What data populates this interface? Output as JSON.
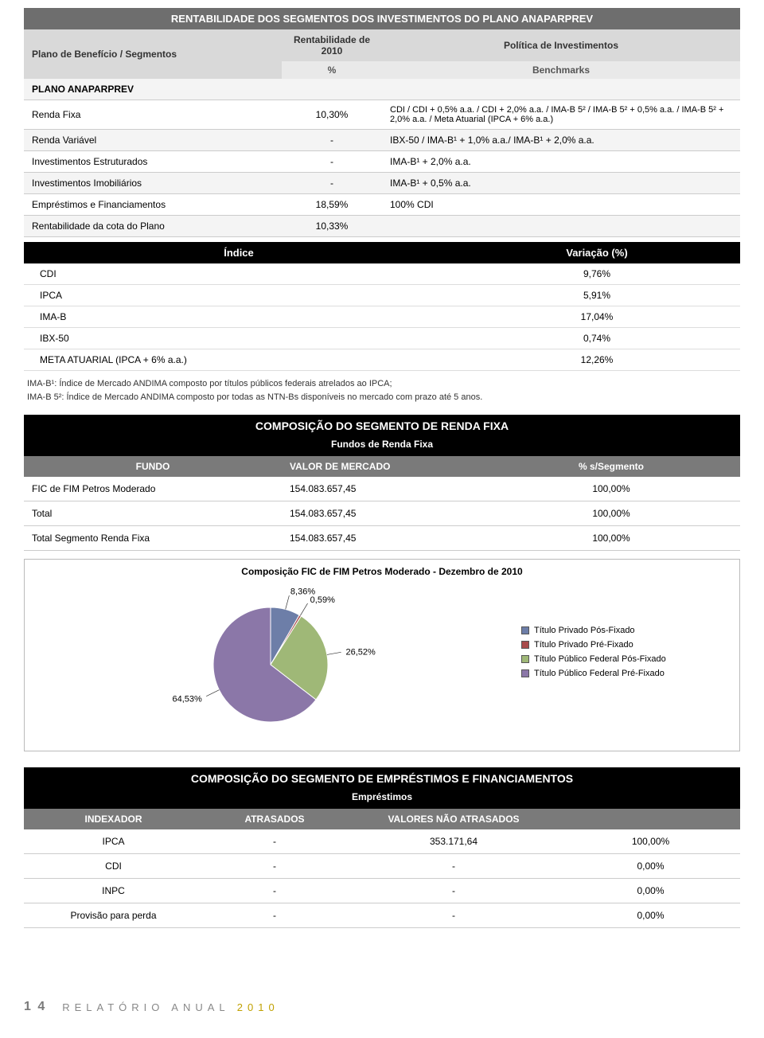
{
  "t1": {
    "title": "RENTABILIDADE DOS SEGMENTOS DOS INVESTIMENTOS DO PLANO ANAPARPREV",
    "head_seg": "Plano de Benefício / Segmentos",
    "head_rent": "Rentabilidade de 2010",
    "head_pct": "%",
    "head_pol": "Política de Investimentos",
    "head_bench": "Benchmarks",
    "plano_row": "PLANO ANAPARPREV",
    "rows": [
      {
        "seg": "Renda Fixa",
        "pct": "10,30%",
        "bench": "CDI / CDI + 0,5% a.a. / CDI + 2,0% a.a. / IMA-B 5² / IMA-B 5² + 0,5% a.a. / IMA-B 5² + 2,0% a.a. / Meta Atuarial (IPCA + 6% a.a.)"
      },
      {
        "seg": "Renda Variável",
        "pct": "-",
        "bench": "IBX-50 / IMA-B¹ + 1,0% a.a./ IMA-B¹ + 2,0% a.a."
      },
      {
        "seg": "Investimentos Estruturados",
        "pct": "-",
        "bench": "IMA-B¹ + 2,0% a.a."
      },
      {
        "seg": "Investimentos Imobiliários",
        "pct": "-",
        "bench": "IMA-B¹ + 0,5% a.a."
      },
      {
        "seg": "Empréstimos e Financiamentos",
        "pct": "18,59%",
        "bench": "100% CDI"
      },
      {
        "seg": "Rentabilidade da cota do Plano",
        "pct": "10,33%",
        "bench": ""
      }
    ]
  },
  "t2": {
    "head_indice": "Índice",
    "head_var": "Variação (%)",
    "rows": [
      {
        "i": "CDI",
        "v": "9,76%"
      },
      {
        "i": "IPCA",
        "v": "5,91%"
      },
      {
        "i": "IMA-B",
        "v": "17,04%"
      },
      {
        "i": "IBX-50",
        "v": "0,74%"
      },
      {
        "i": "META ATUARIAL (IPCA + 6% a.a.)",
        "v": "12,26%"
      }
    ]
  },
  "footnotes": {
    "l1": "IMA-B¹: Índice de Mercado ANDIMA composto por títulos públicos federais atrelados ao IPCA;",
    "l2": "IMA-B 5²: Índice de Mercado ANDIMA composto por todas as NTN-Bs disponíveis no mercado com prazo até 5 anos."
  },
  "t3": {
    "title": "COMPOSIÇÃO DO SEGMENTO DE RENDA FIXA",
    "subtitle": "Fundos de Renda Fixa",
    "head_fundo": "FUNDO",
    "head_valor": "VALOR DE MERCADO",
    "head_pct": "% s/Segmento",
    "rows": [
      {
        "f": "FIC de FIM Petros Moderado",
        "v": "154.083.657,45",
        "p": "100,00%"
      },
      {
        "f": "Total",
        "v": "154.083.657,45",
        "p": "100,00%"
      },
      {
        "f": "Total Segmento Renda Fixa",
        "v": "154.083.657,45",
        "p": "100,00%"
      }
    ]
  },
  "chart": {
    "type": "pie",
    "title": "Composição FIC de FIM Petros Moderado - Dezembro de 2010",
    "background_color": "#ffffff",
    "border_color": "#bbbbbb",
    "label_fontsize": 11,
    "slices": [
      {
        "label": "Título Privado Pós-Fixado",
        "value": 8.36,
        "color": "#6d7ea8",
        "label_text": "8,36%"
      },
      {
        "label": "Título Privado Pré-Fixado",
        "value": 0.59,
        "color": "#a84b4b",
        "label_text": "0,59%"
      },
      {
        "label": "Título Público Federal Pós-Fixado",
        "value": 26.52,
        "color": "#9fb877",
        "label_text": "26,52%"
      },
      {
        "label": "Título Público Federal Pré-Fixado",
        "value": 64.53,
        "color": "#8b77a8",
        "label_text": "64,53%"
      }
    ],
    "legend_marker_border": "#555555"
  },
  "t4": {
    "title": "COMPOSIÇÃO DO SEGMENTO DE EMPRÉSTIMOS E FINANCIAMENTOS",
    "subtitle": "Empréstimos",
    "head_idx": "INDEXADOR",
    "head_atr": "ATRASADOS",
    "head_natr": "VALORES NÃO ATRASADOS",
    "rows": [
      {
        "i": "IPCA",
        "a": "-",
        "n": "353.171,64",
        "p": "100,00%"
      },
      {
        "i": "CDI",
        "a": "-",
        "n": "-",
        "p": "0,00%"
      },
      {
        "i": "INPC",
        "a": "-",
        "n": "-",
        "p": "0,00%"
      },
      {
        "i": "Provisão para perda",
        "a": "-",
        "n": "-",
        "p": "0,00%"
      }
    ]
  },
  "footer": {
    "page": "1 4",
    "title_a": "RELATÓRIO ANUAL ",
    "title_b": "2010"
  }
}
